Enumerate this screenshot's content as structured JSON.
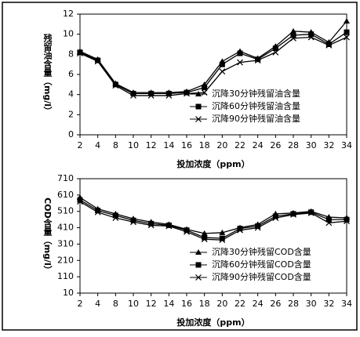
{
  "chart_data": [
    {
      "type": "line",
      "y_label": "残留油含量（mg/l）",
      "x_label": "投加浓度（ppm）",
      "categories": [
        "2",
        "4",
        "8",
        "10",
        "12",
        "14",
        "16",
        "18",
        "20",
        "22",
        "24",
        "26",
        "28",
        "30",
        "32",
        "34"
      ],
      "ylim": [
        0,
        12
      ],
      "yticks": [
        0,
        2,
        4,
        6,
        8,
        10,
        12
      ],
      "legend": "lower right",
      "series": [
        {
          "name": "沉降30分钟残留油含量",
          "color": "#000000",
          "marker": "triangle",
          "values": [
            8.3,
            7.5,
            5.1,
            4.2,
            4.2,
            4.2,
            4.3,
            5.0,
            7.3,
            8.3,
            7.6,
            8.8,
            10.3,
            10.2,
            9.2,
            11.3
          ]
        },
        {
          "name": "沉降60分钟残留油含量",
          "color": "#000000",
          "marker": "square",
          "values": [
            8.2,
            7.4,
            5.0,
            4.1,
            4.1,
            4.1,
            4.2,
            4.7,
            7.0,
            8.1,
            7.5,
            8.6,
            9.9,
            10.0,
            9.0,
            10.2
          ]
        },
        {
          "name": "沉降90分钟残留油含量",
          "color": "#000000",
          "marker": "x",
          "values": [
            8.1,
            7.3,
            4.9,
            3.9,
            3.9,
            3.9,
            4.1,
            4.2,
            6.3,
            7.2,
            7.4,
            8.2,
            9.6,
            9.7,
            8.9,
            9.7
          ]
        }
      ]
    },
    {
      "type": "line",
      "y_label": "COD含量（mg/l）",
      "x_label": "投加浓度（ppm）",
      "categories": [
        "2",
        "4",
        "8",
        "10",
        "12",
        "14",
        "16",
        "18",
        "20",
        "22",
        "24",
        "26",
        "28",
        "30",
        "32",
        "34"
      ],
      "ylim": [
        10,
        710
      ],
      "yticks": [
        10,
        110,
        210,
        310,
        410,
        510,
        610,
        710
      ],
      "legend": "lower right",
      "series": [
        {
          "name": "沉降30分钟残留COD含量",
          "color": "#000000",
          "marker": "triangle",
          "values": [
            595,
            525,
            495,
            465,
            445,
            430,
            400,
            375,
            380,
            410,
            430,
            495,
            500,
            510,
            475,
            470
          ]
        },
        {
          "name": "沉降60分钟残留COD含量",
          "color": "#000000",
          "marker": "square",
          "values": [
            580,
            515,
            485,
            455,
            435,
            425,
            395,
            350,
            345,
            405,
            420,
            480,
            495,
            505,
            460,
            460
          ]
        },
        {
          "name": "沉降90分钟残留COD含量",
          "color": "#000000",
          "marker": "x",
          "values": [
            570,
            505,
            470,
            445,
            425,
            420,
            385,
            340,
            335,
            395,
            410,
            470,
            490,
            500,
            440,
            450
          ]
        }
      ]
    }
  ]
}
